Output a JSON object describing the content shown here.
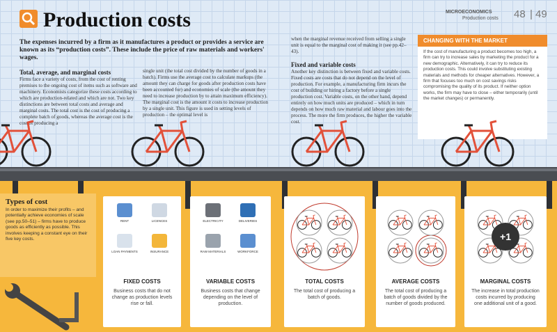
{
  "header": {
    "title": "Production costs",
    "section": "MICROECONOMICS",
    "subsection": "Production costs",
    "pages": [
      "48",
      "49"
    ]
  },
  "intro": "The expenses incurred by a firm as it manufactures a product or provides a service are known as its “production costs”. These include the price of raw materials and workers' wages.",
  "columns": [
    {
      "heading": "Total, average, and marginal costs",
      "text": "Firms face a variety of costs, from the cost of renting premises to the ongoing cost of items such as software and machinery. Economists categorize these costs according to which are production-related and which are not. Two key distinctions are between total costs and average and marginal costs. The total cost is the cost of producing a complete batch of goods, whereas the average cost is the cost of producing a"
    },
    {
      "text": "single unit (the total cost divided by the number of goods in a batch). Firms use the average cost to calculate markups (the amount they can charge for goods after production costs have been accounted for) and economies of scale (the amount they need to increase production by to attain maximum efficiency). The marginal cost is the amount it costs to increase production by a single unit. This figure is used in setting levels of production – the optimal level is"
    },
    {
      "text": "when the marginal revenue received from selling a single unit is equal to the marginal cost of making it (see pp.42–43).",
      "heading": "Fixed and variable costs",
      "text2": "Another key distinction is between fixed and variable costs. Fixed costs are costs that do not depend on the level of production. For example, a manufacturing firm incurs the cost of building or hiring a factory before a single production cost. Variable costs, on the other hand, depend entirely on how much units are produced – which in turn depends on how much raw material and labour goes into the process. The more the firm produces, the higher the variable cost."
    }
  ],
  "sidebar": {
    "title": "CHANGING WITH THE MARKET",
    "text": "If the cost of manufacturing a product becomes too high, a firm can try to increase sales by marketing the product for a new demographic. Alternatively, it can try to reduce its production costs. This could involve substituting existing materials and methods for cheaper alternatives. However, a firm that focuses too much on cost savings risks compromising the quality of its product. If neither option works, the firm may have to close – either temporarily (until the market changes) or permanently."
  },
  "types": {
    "title": "Types of cost",
    "text": "In order to maximize their profits – and potentially achieve economies of scale (see pp.50–51) – firms have to produce goods as efficiently as possible. This involves keeping a constant eye on their five key costs."
  },
  "cards": [
    {
      "title": "FIXED COSTS",
      "text": "Business costs that do not change as production levels rise or fall.",
      "icons": [
        "RENT",
        "LICENCES",
        "LOAN PAYMENTS",
        "INSURANCE"
      ]
    },
    {
      "title": "VARIABLE COSTS",
      "text": "Business costs that change depending on the level of production.",
      "icons": [
        "ELECTRICITY",
        "DELIVERIES",
        "RAW MATERIALS",
        "WORKFORCE"
      ]
    },
    {
      "title": "TOTAL COSTS",
      "text": "The total cost of producing a batch of goods."
    },
    {
      "title": "AVERAGE COSTS",
      "text": "The total cost of producing a batch of goods divided by the number of goods produced."
    },
    {
      "title": "MARGINAL COSTS",
      "text": "The increase in total production costs incurred by producing one additional unit of a good.",
      "badge": "+1"
    }
  ]
}
